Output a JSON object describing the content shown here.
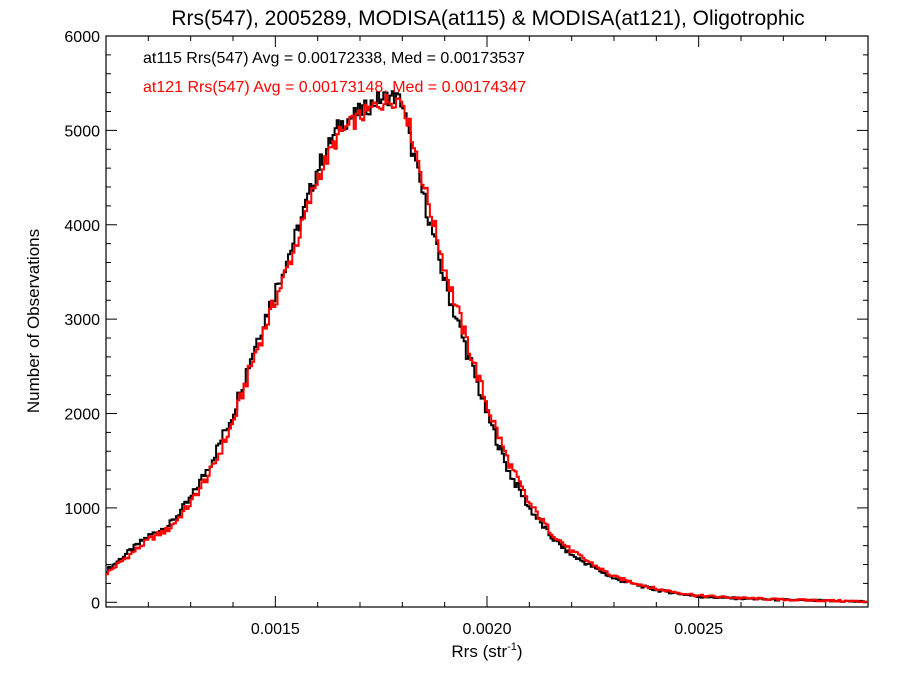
{
  "chart_data": {
    "type": "line",
    "title": "Rrs(547), 2005289, MODISA(at115) & MODISA(at121), Oligotrophic",
    "xlabel": "Rrs (str",
    "xlabel_exponent": "-1",
    "xlabel_close": ")",
    "ylabel": "Number of Observations",
    "xlim": [
      0.0011,
      0.0029
    ],
    "ylim": [
      -50,
      6000
    ],
    "x_ticks": [
      0.0015,
      0.002,
      0.0025
    ],
    "x_tick_labels": [
      "0.0015",
      "0.0020",
      "0.0025"
    ],
    "y_ticks": [
      0,
      1000,
      2000,
      3000,
      4000,
      5000,
      6000
    ],
    "y_tick_labels": [
      "0",
      "1000",
      "2000",
      "3000",
      "4000",
      "5000",
      "6000"
    ],
    "grid": false,
    "legend_placement": "top-left",
    "series": [
      {
        "color": "#000000",
        "legend_text": "at115 Rrs(547) Avg = 0.00172338, Med = 0.00173537",
        "x": [
          0.0011,
          0.00115,
          0.0012,
          0.00125,
          0.0013,
          0.00135,
          0.0014,
          0.00145,
          0.0015,
          0.00155,
          0.0016,
          0.00165,
          0.0017,
          0.00172,
          0.00174,
          0.00176,
          0.00178,
          0.0018,
          0.00182,
          0.00185,
          0.0019,
          0.00195,
          0.002,
          0.00205,
          0.0021,
          0.00215,
          0.0022,
          0.0023,
          0.0024,
          0.0025,
          0.0026,
          0.0027,
          0.0028,
          0.0029
        ],
        "y": [
          330,
          520,
          700,
          820,
          1100,
          1500,
          2000,
          2700,
          3300,
          3900,
          4600,
          5050,
          5200,
          5250,
          5320,
          5350,
          5360,
          5300,
          4850,
          4300,
          3400,
          2700,
          2000,
          1400,
          1000,
          700,
          500,
          250,
          130,
          60,
          40,
          25,
          15,
          5
        ]
      },
      {
        "color": "#ff0000",
        "legend_text": "at121 Rrs(547) Avg = 0.00173148, Med = 0.00174347",
        "x": [
          0.0011,
          0.00115,
          0.0012,
          0.00125,
          0.0013,
          0.00135,
          0.0014,
          0.00145,
          0.0015,
          0.00155,
          0.0016,
          0.00165,
          0.0017,
          0.00172,
          0.00174,
          0.00176,
          0.00178,
          0.0018,
          0.00182,
          0.00185,
          0.0019,
          0.00195,
          0.002,
          0.00205,
          0.0021,
          0.00215,
          0.0022,
          0.0023,
          0.0024,
          0.0025,
          0.0026,
          0.0027,
          0.0028,
          0.0029
        ],
        "y": [
          300,
          480,
          660,
          780,
          1050,
          1400,
          1900,
          2600,
          3200,
          3800,
          4500,
          4950,
          5150,
          5200,
          5280,
          5300,
          5330,
          5330,
          5000,
          4450,
          3550,
          2800,
          2100,
          1500,
          1050,
          750,
          540,
          270,
          140,
          70,
          45,
          28,
          18,
          8
        ]
      }
    ]
  }
}
